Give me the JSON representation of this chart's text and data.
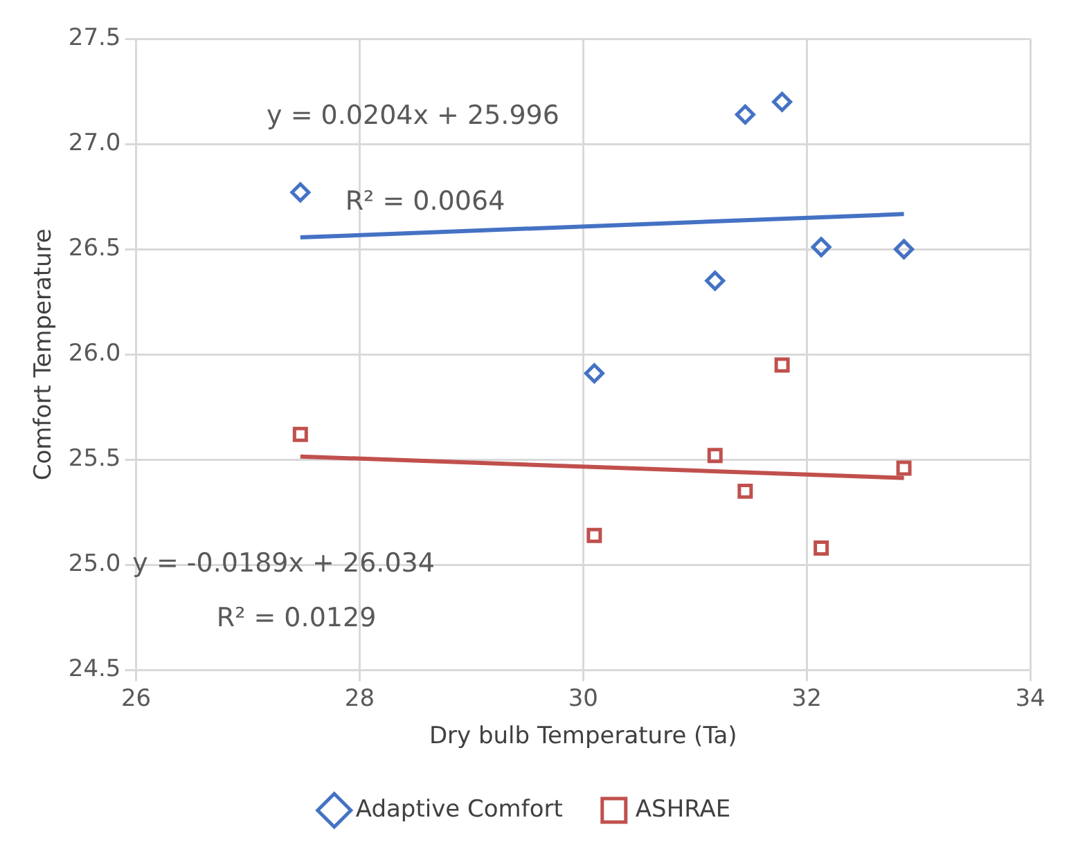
{
  "chart_data": {
    "type": "scatter",
    "xlabel": "Dry bulb Temperature (Ta)",
    "ylabel": "Comfort Temperature",
    "xlim": [
      26,
      34
    ],
    "xticks": [
      26,
      28,
      30,
      32,
      34
    ],
    "ylim": [
      24.5,
      27.5
    ],
    "yticks": [
      {
        "value": 24.5,
        "label": "24.5"
      },
      {
        "value": 25,
        "label": "25.0"
      },
      {
        "value": 25.5,
        "label": "25.5"
      },
      {
        "value": 26,
        "label": "26.0"
      },
      {
        "value": 26.5,
        "label": "26.5"
      },
      {
        "value": 27,
        "label": "27.0"
      },
      {
        "value": 27.5,
        "label": "27.5"
      }
    ],
    "grid": true,
    "legend": "bottom",
    "series": [
      {
        "name": "Adaptive Comfort",
        "color": "#4472c4",
        "marker": "diamond",
        "x": [
          27.47,
          31.45,
          31.78,
          31.18,
          32.13,
          32.87,
          30.1
        ],
        "values": [
          26.77,
          27.14,
          27.2,
          26.35,
          26.51,
          26.5,
          25.91
        ]
      },
      {
        "name": "ASHRAE",
        "color": "#c0504d",
        "marker": "square",
        "x": [
          27.47,
          31.18,
          31.45,
          31.78,
          30.1,
          32.13,
          32.87
        ],
        "values": [
          25.62,
          25.52,
          25.35,
          25.95,
          25.14,
          25.08,
          25.46
        ]
      },
      {
        "type": "line",
        "color": "#4472c4",
        "marker": "none",
        "x": [
          27.47,
          32.87
        ],
        "values": [
          26.556,
          26.667
        ]
      },
      {
        "type": "line",
        "color": "#c0504d",
        "marker": "none",
        "x": [
          27.47,
          32.87
        ],
        "values": [
          25.515,
          25.413
        ]
      }
    ],
    "annotations": [
      "y = 0.0204x + 25.996",
      "R² = 0.0064",
      "y = -0.0189x + 26.034",
      "R² = 0.0129"
    ]
  }
}
